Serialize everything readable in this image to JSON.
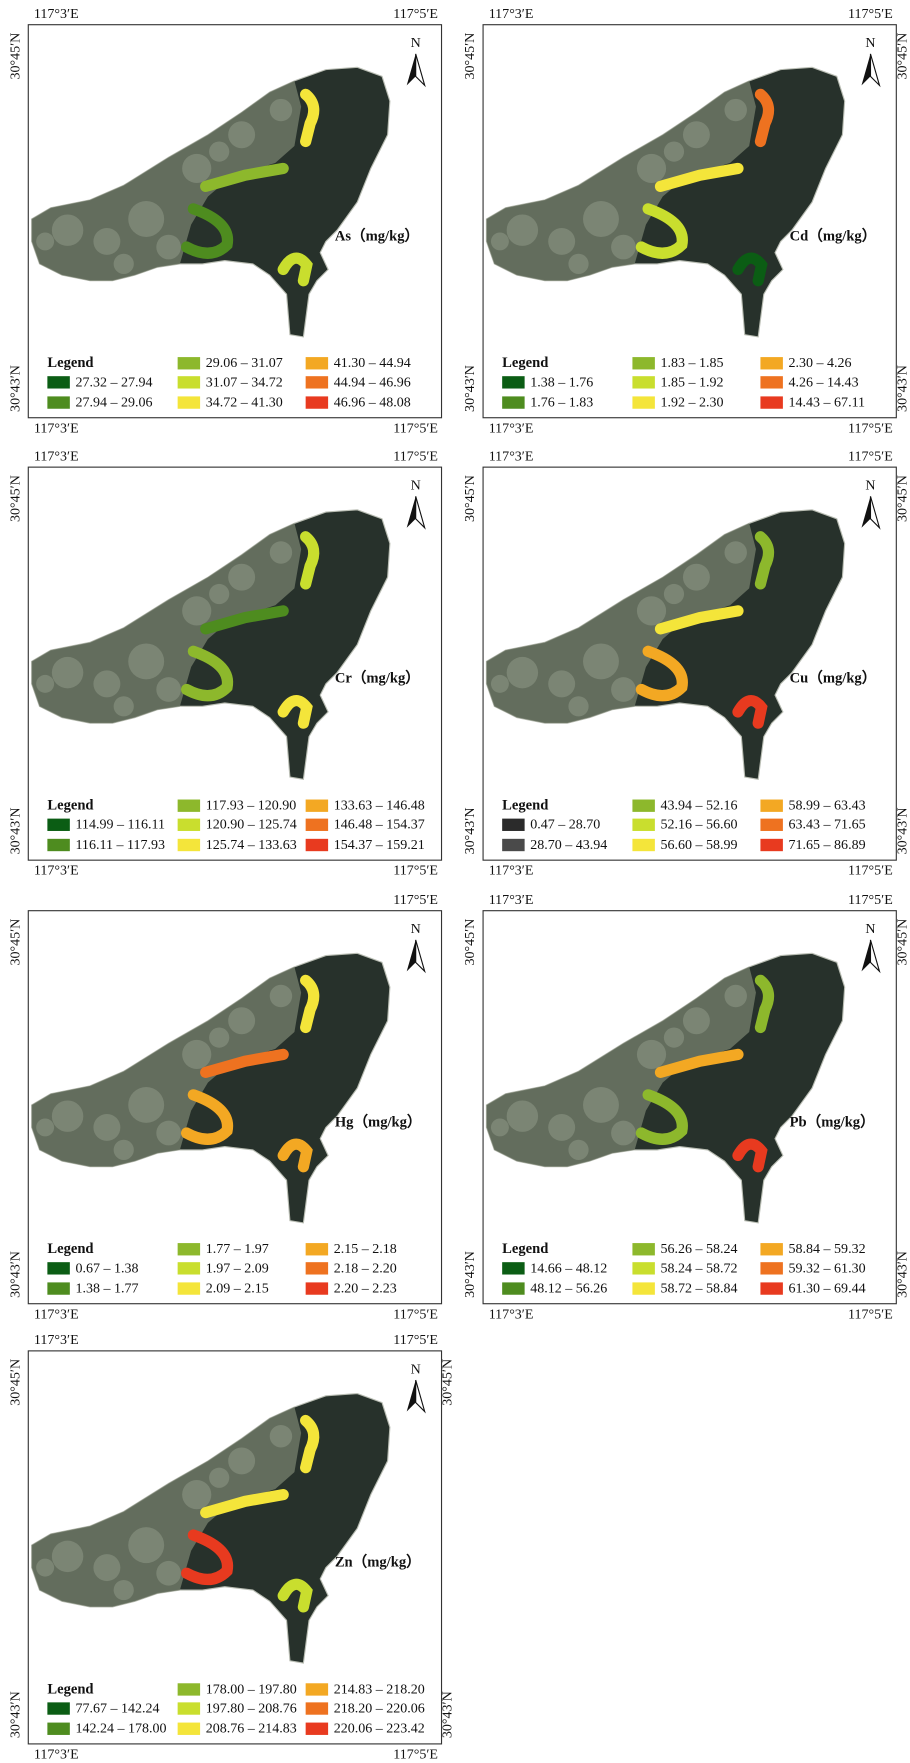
{
  "panels": [
    {
      "element": "As（mg/kg）",
      "north": "N",
      "coords": {
        "top_left": "117°3′E",
        "top_right": "117°5′E",
        "left_top": "30°45′N",
        "left_bottom": "30°43′N",
        "bottom_left": "117°3′E",
        "bottom_right": "117°5′E"
      },
      "legend": {
        "title": "Legend",
        "items": [
          {
            "label": "27.32 – 27.94",
            "color": "#0b5d14"
          },
          {
            "label": "27.94 – 29.06",
            "color": "#4e8c1f"
          },
          {
            "label": "29.06 – 31.07",
            "color": "#8db82c"
          },
          {
            "label": "31.07 – 34.72",
            "color": "#c9de2e"
          },
          {
            "label": "34.72 – 41.30",
            "color": "#f4e53a"
          },
          {
            "label": "41.30 – 44.94",
            "color": "#f3a823"
          },
          {
            "label": "44.94 – 46.96",
            "color": "#ee7220"
          },
          {
            "label": "46.96 – 48.08",
            "color": "#e83a1f"
          }
        ]
      }
    },
    {
      "element": "Cd（mg/kg）",
      "north": "N",
      "coords": {
        "top_left": "117°3′E",
        "top_right": "117°5′E",
        "left_top": "30°45′N",
        "left_bottom": "30°43′N",
        "bottom_left": "117°3′E",
        "bottom_right": "117°5′E",
        "right_top": "30°45′N",
        "right_bottom": "30°43′N"
      },
      "legend": {
        "title": "Legend",
        "items": [
          {
            "label": "1.38 – 1.76",
            "color": "#0b5d14"
          },
          {
            "label": "1.76 – 1.83",
            "color": "#4e8c1f"
          },
          {
            "label": "1.83 – 1.85",
            "color": "#8db82c"
          },
          {
            "label": "1.85 – 1.92",
            "color": "#c9de2e"
          },
          {
            "label": "1.92 – 2.30",
            "color": "#f4e53a"
          },
          {
            "label": "2.30 – 4.26",
            "color": "#f3a823"
          },
          {
            "label": "4.26 – 14.43",
            "color": "#ee7220"
          },
          {
            "label": "14.43 – 67.11",
            "color": "#e83a1f"
          }
        ]
      }
    },
    {
      "element": "Cr（mg/kg）",
      "north": "N",
      "coords": {
        "top_left": "117°3′E",
        "top_right": "117°5′E",
        "left_top": "30°45′N",
        "left_bottom": "30°43′N",
        "bottom_left": "117°3′E",
        "bottom_right": "117°5′E"
      },
      "legend": {
        "title": "Legend",
        "items": [
          {
            "label": "114.99 – 116.11",
            "color": "#0b5d14"
          },
          {
            "label": "116.11 – 117.93",
            "color": "#4e8c1f"
          },
          {
            "label": "117.93 – 120.90",
            "color": "#8db82c"
          },
          {
            "label": "120.90 – 125.74",
            "color": "#c9de2e"
          },
          {
            "label": "125.74 – 133.63",
            "color": "#f4e53a"
          },
          {
            "label": "133.63 – 146.48",
            "color": "#f3a823"
          },
          {
            "label": "146.48 – 154.37",
            "color": "#ee7220"
          },
          {
            "label": "154.37 – 159.21",
            "color": "#e83a1f"
          }
        ]
      }
    },
    {
      "element": "Cu（mg/kg）",
      "north": "N",
      "coords": {
        "top_left": "117°3′E",
        "top_right": "117°5′E",
        "left_top": "30°45′N",
        "left_bottom": "30°43′N",
        "bottom_left": "117°3′E",
        "bottom_right": "117°5′E",
        "right_top": "30°45′N",
        "right_bottom": "30°43′N"
      },
      "legend": {
        "title": "Legend",
        "items": [
          {
            "label": "0.47 – 28.70",
            "color": "#2b2b2b"
          },
          {
            "label": "28.70 – 43.94",
            "color": "#4a4a4a"
          },
          {
            "label": "43.94 – 52.16",
            "color": "#8db82c"
          },
          {
            "label": "52.16 – 56.60",
            "color": "#c9de2e"
          },
          {
            "label": "56.60 – 58.99",
            "color": "#f4e53a"
          },
          {
            "label": "58.99 – 63.43",
            "color": "#f3a823"
          },
          {
            "label": "63.43 – 71.65",
            "color": "#ee7220"
          },
          {
            "label": "71.65 – 86.89",
            "color": "#e83a1f"
          }
        ]
      }
    },
    {
      "element": "Hg（mg/kg）",
      "north": "N",
      "coords": {
        "top_right": "117°5′E",
        "left_top": "30°45′N",
        "left_bottom": "30°43′N",
        "bottom_left": "117°3′E",
        "bottom_right": "117°5′E"
      },
      "legend": {
        "title": "Legend",
        "items": [
          {
            "label": "0.67 – 1.38",
            "color": "#0b5d14"
          },
          {
            "label": "1.38 – 1.77",
            "color": "#4e8c1f"
          },
          {
            "label": "1.77 – 1.97",
            "color": "#8db82c"
          },
          {
            "label": "1.97 – 2.09",
            "color": "#c9de2e"
          },
          {
            "label": "2.09 – 2.15",
            "color": "#f4e53a"
          },
          {
            "label": "2.15 – 2.18",
            "color": "#f3a823"
          },
          {
            "label": "2.18 – 2.20",
            "color": "#ee7220"
          },
          {
            "label": "2.20 – 2.23",
            "color": "#e83a1f"
          }
        ]
      }
    },
    {
      "element": "Pb（mg/kg）",
      "north": "N",
      "coords": {
        "top_left": "117°3′E",
        "top_right": "117°5′E",
        "left_top": "30°45′N",
        "left_bottom": "30°43′N",
        "bottom_left": "117°3′E",
        "bottom_right": "117°5′E",
        "right_top": "30°45′N",
        "right_bottom": "30°43′N"
      },
      "legend": {
        "title": "Legend",
        "items": [
          {
            "label": "14.66 – 48.12",
            "color": "#0b5d14"
          },
          {
            "label": "48.12 – 56.26",
            "color": "#4e8c1f"
          },
          {
            "label": "56.26 – 58.24",
            "color": "#8db82c"
          },
          {
            "label": "58.24 – 58.72",
            "color": "#c9de2e"
          },
          {
            "label": "58.72 – 58.84",
            "color": "#f4e53a"
          },
          {
            "label": "58.84 – 59.32",
            "color": "#f3a823"
          },
          {
            "label": "59.32 – 61.30",
            "color": "#ee7220"
          },
          {
            "label": "61.30 – 69.44",
            "color": "#e83a1f"
          }
        ]
      }
    },
    {
      "element": "Zn（mg/kg）",
      "north": "N",
      "coords": {
        "top_left": "117°3′E",
        "top_right": "117°5′E",
        "left_top": "30°45′N",
        "left_bottom": "30°43′N",
        "bottom_left": "117°3′E",
        "bottom_right": "117°5′E",
        "right_top": "30°45′N",
        "right_bottom": "30°43′N"
      },
      "legend": {
        "title": "Legend",
        "items": [
          {
            "label": "77.67 – 142.24",
            "color": "#0b5d14"
          },
          {
            "label": "142.24 – 178.00",
            "color": "#4e8c1f"
          },
          {
            "label": "178.00 – 197.80",
            "color": "#8db82c"
          },
          {
            "label": "197.80 – 208.76",
            "color": "#c9de2e"
          },
          {
            "label": "208.76 – 214.83",
            "color": "#f4e53a"
          },
          {
            "label": "214.83 – 218.20",
            "color": "#f3a823"
          },
          {
            "label": "218.20 – 220.06",
            "color": "#ee7220"
          },
          {
            "label": "220.06 – 223.42",
            "color": "#e83a1f"
          }
        ]
      }
    }
  ]
}
